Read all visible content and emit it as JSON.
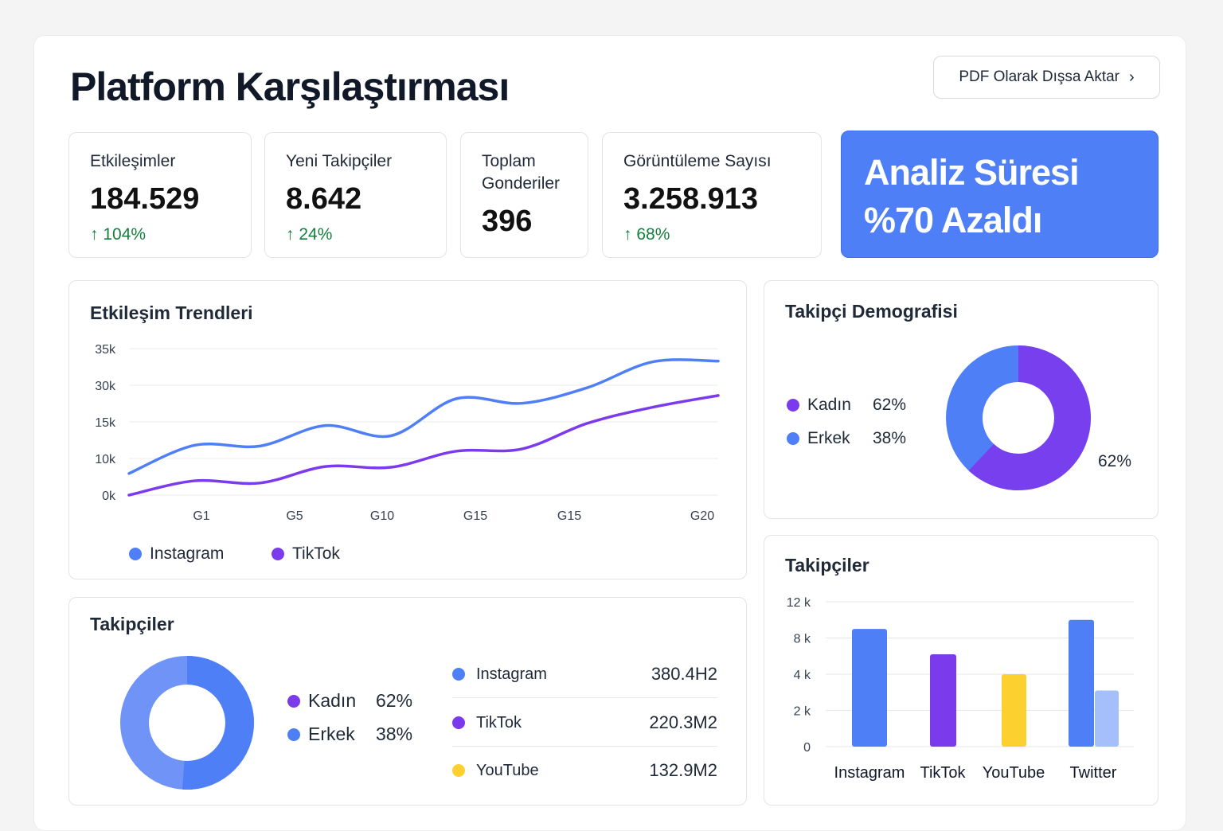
{
  "header": {
    "title": "Platform Karşılaştırması",
    "export_label": "PDF Olarak Dışsa Aktar"
  },
  "stats": [
    {
      "label": "Etkileşimler",
      "value": "184.529",
      "change": "104%"
    },
    {
      "label": "Yeni Takipçiler",
      "value": "8.642",
      "change": "24%"
    },
    {
      "label": "Toplam Gonderiler",
      "value": "396"
    },
    {
      "label": "Görüntüleme Sayısı",
      "value": "3.258.913",
      "change": "68%"
    }
  ],
  "hero": {
    "line1": "Analiz Süresi",
    "line2": "%70 Azaldı"
  },
  "colors": {
    "instagram": "#4f7ff6",
    "tiktok": "#7c3aed",
    "youtube": "#fcd12f",
    "twitter_secondary": "#a5bffb",
    "accent": "#4f7ff6",
    "positive": "#15803d"
  },
  "demographics": {
    "title": "Takipçi Demografisi",
    "items": [
      {
        "label": "Kadın",
        "value": "62%"
      },
      {
        "label": "Erkek",
        "value": "38%"
      }
    ],
    "donut_label": "62%"
  },
  "followers_list": {
    "title": "Takipçiler",
    "items": [
      {
        "label": "Kadın",
        "value": "62%"
      },
      {
        "label": "Erkek",
        "value": "38%"
      }
    ],
    "platforms": [
      {
        "name": "Instagram",
        "value": "380.4H2"
      },
      {
        "name": "TikTok",
        "value": "220.3M2"
      },
      {
        "name": "YouTube",
        "value": "132.9M2"
      }
    ]
  },
  "chart_data": [
    {
      "type": "line",
      "title": "Etkileşim Trendleri",
      "yticks": [
        "0k",
        "10k",
        "15k",
        "30k",
        "35k"
      ],
      "ytick_values": [
        0,
        10,
        15,
        30,
        35
      ],
      "xticks": [
        "G1",
        "G5",
        "G10",
        "G15",
        "G15",
        "G20"
      ],
      "grid": true,
      "legend": "bottom-left",
      "series": [
        {
          "name": "Instagram",
          "values": [
            5.9,
            11.8,
            11.7,
            14.5,
            13.1,
            24.5,
            22.6,
            29,
            33.2,
            33.3
          ]
        },
        {
          "name": "TikTok",
          "values": [
            0,
            3.9,
            3.3,
            7.8,
            7.6,
            11,
            11.3,
            14.8,
            21,
            25.8
          ]
        }
      ]
    },
    {
      "type": "bar",
      "title": "Takipçiler",
      "yticks": [
        "0",
        "2 k",
        "4 k",
        "8 k",
        "12 k"
      ],
      "ytick_values": [
        0,
        2,
        4,
        8,
        12
      ],
      "categories": [
        "Instagram",
        "TikTok",
        "YouTube",
        "Twitter"
      ],
      "values": [
        [
          9
        ],
        [
          6.2
        ],
        [
          4
        ],
        [
          10,
          3.1
        ]
      ],
      "grid": true
    }
  ]
}
